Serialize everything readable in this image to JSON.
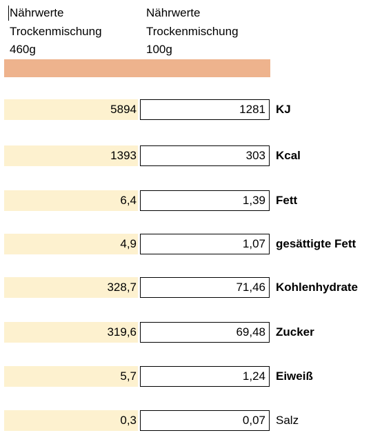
{
  "header": {
    "left": [
      "Nährwerte",
      "Trockenmischung",
      "460g"
    ],
    "right": [
      "Nährwerte",
      "Trockenmischung",
      "100g"
    ]
  },
  "colors": {
    "header_band": "#eeb38d",
    "row_fill": "#fdf1cf"
  },
  "rows": [
    {
      "total": "5894",
      "per100": "1281",
      "label": "KJ",
      "bold": true
    },
    {
      "total": "1393",
      "per100": "303",
      "label": "Kcal",
      "bold": true
    },
    {
      "total": "6,4",
      "per100": "1,39",
      "label": "Fett",
      "bold": true
    },
    {
      "total": "4,9",
      "per100": "1,07",
      "label": "gesättigte Fett",
      "bold": true
    },
    {
      "total": "328,7",
      "per100": "71,46",
      "label": "Kohlenhydrate",
      "bold": true
    },
    {
      "total": "319,6",
      "per100": "69,48",
      "label": "Zucker",
      "bold": true
    },
    {
      "total": "5,7",
      "per100": "1,24",
      "label": "Eiweiß",
      "bold": true
    },
    {
      "total": "0,3",
      "per100": "0,07",
      "label": "Salz",
      "bold": false
    }
  ]
}
